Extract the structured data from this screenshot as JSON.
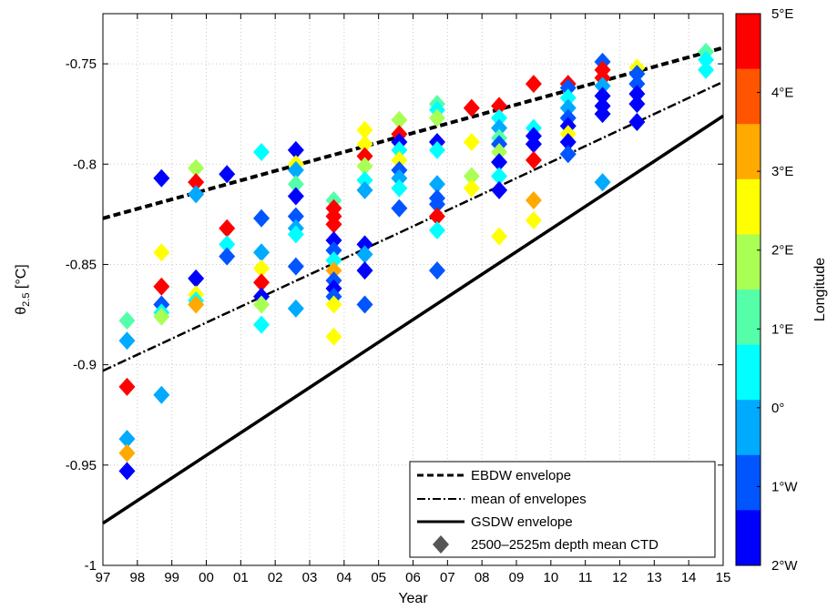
{
  "chart_data": {
    "type": "scatter",
    "xlabel": "Year",
    "ylabel_main": "θ",
    "ylabel_sub": "2.5",
    "ylabel_unit": " [°C]",
    "colorbar_label": "Longitude",
    "x_ticks": [
      "97",
      "98",
      "99",
      "00",
      "01",
      "02",
      "03",
      "04",
      "05",
      "06",
      "07",
      "08",
      "09",
      "10",
      "11",
      "12",
      "13",
      "14",
      "15"
    ],
    "y_ticks": [
      "-0.75",
      "-0.8",
      "-0.85",
      "-0.9",
      "-0.95",
      "-1"
    ],
    "y_tick_values": [
      -0.75,
      -0.8,
      -0.85,
      -0.9,
      -0.95,
      -1.0
    ],
    "xlim": [
      1997,
      2015
    ],
    "ylim": [
      -1.0,
      -0.725
    ],
    "grid": true,
    "legend_position": "bottom-right",
    "colorbar": {
      "range": [
        -2,
        5
      ],
      "tick_values": [
        5,
        4,
        3,
        2,
        1,
        0,
        -1,
        -2
      ],
      "tick_labels": [
        "5°E",
        "4°E",
        "3°E",
        "2°E",
        "1°E",
        "0°",
        "1°W",
        "2°W"
      ],
      "colors": [
        "#0000ff",
        "#0055ff",
        "#00aaff",
        "#00ffff",
        "#55ffaa",
        "#aaff55",
        "#ffff00",
        "#ffaa00",
        "#ff5500",
        "#ff0000"
      ]
    },
    "lines": [
      {
        "name": "EBDW envelope",
        "style": "dashed",
        "x": [
          1997,
          2015
        ],
        "y": [
          -0.827,
          -0.742
        ]
      },
      {
        "name": "mean of envelopes",
        "style": "dashdot",
        "x": [
          1997,
          2015
        ],
        "y": [
          -0.903,
          -0.759
        ]
      },
      {
        "name": "GSDW envelope",
        "style": "solid",
        "x": [
          1997,
          2015
        ],
        "y": [
          -0.979,
          -0.776
        ]
      }
    ],
    "points_legend_label": "2500–2525m depth mean CTD",
    "points": [
      {
        "x": 1997.7,
        "y": -0.878,
        "lon": 1.3
      },
      {
        "x": 1997.7,
        "y": -0.888,
        "lon": -0.3
      },
      {
        "x": 1997.7,
        "y": -0.911,
        "lon": 4.8
      },
      {
        "x": 1997.7,
        "y": -0.937,
        "lon": 0.0
      },
      {
        "x": 1997.7,
        "y": -0.944,
        "lon": 3.0
      },
      {
        "x": 1997.7,
        "y": -0.953,
        "lon": -1.6
      },
      {
        "x": 1998.7,
        "y": -0.807,
        "lon": -1.5
      },
      {
        "x": 1998.7,
        "y": -0.844,
        "lon": 2.2
      },
      {
        "x": 1998.7,
        "y": -0.861,
        "lon": 4.7
      },
      {
        "x": 1998.7,
        "y": -0.87,
        "lon": -0.8
      },
      {
        "x": 1998.7,
        "y": -0.874,
        "lon": 0.6
      },
      {
        "x": 1998.7,
        "y": -0.876,
        "lon": 1.5
      },
      {
        "x": 1998.7,
        "y": -0.915,
        "lon": -0.5
      },
      {
        "x": 1999.7,
        "y": -0.802,
        "lon": 2.1
      },
      {
        "x": 1999.7,
        "y": -0.809,
        "lon": 4.7
      },
      {
        "x": 1999.7,
        "y": -0.815,
        "lon": -0.4
      },
      {
        "x": 1999.7,
        "y": -0.857,
        "lon": -1.5
      },
      {
        "x": 1999.7,
        "y": -0.865,
        "lon": 2.6
      },
      {
        "x": 1999.7,
        "y": -0.868,
        "lon": 0.2
      },
      {
        "x": 1999.7,
        "y": -0.87,
        "lon": 3.1
      },
      {
        "x": 2000.6,
        "y": -0.805,
        "lon": -1.4
      },
      {
        "x": 2000.6,
        "y": -0.832,
        "lon": 4.6
      },
      {
        "x": 2000.6,
        "y": -0.84,
        "lon": 0.3
      },
      {
        "x": 2000.6,
        "y": -0.846,
        "lon": -0.6
      },
      {
        "x": 2001.6,
        "y": -0.794,
        "lon": 0.4
      },
      {
        "x": 2001.6,
        "y": -0.827,
        "lon": -0.8
      },
      {
        "x": 2001.6,
        "y": -0.844,
        "lon": -0.4
      },
      {
        "x": 2001.6,
        "y": -0.852,
        "lon": 2.2
      },
      {
        "x": 2001.6,
        "y": -0.859,
        "lon": 4.6
      },
      {
        "x": 2001.6,
        "y": -0.866,
        "lon": -1.6
      },
      {
        "x": 2001.6,
        "y": -0.87,
        "lon": 1.6
      },
      {
        "x": 2001.6,
        "y": -0.88,
        "lon": 0.2
      },
      {
        "x": 2002.6,
        "y": -0.793,
        "lon": -1.6
      },
      {
        "x": 2002.6,
        "y": -0.8,
        "lon": 2.2
      },
      {
        "x": 2002.6,
        "y": -0.803,
        "lon": -0.5
      },
      {
        "x": 2002.6,
        "y": -0.81,
        "lon": 1.4
      },
      {
        "x": 2002.6,
        "y": -0.816,
        "lon": -1.3
      },
      {
        "x": 2002.6,
        "y": -0.826,
        "lon": -1.0
      },
      {
        "x": 2002.6,
        "y": -0.832,
        "lon": -0.4
      },
      {
        "x": 2002.6,
        "y": -0.835,
        "lon": 0.8
      },
      {
        "x": 2002.6,
        "y": -0.851,
        "lon": -1.0
      },
      {
        "x": 2002.6,
        "y": -0.872,
        "lon": -0.2
      },
      {
        "x": 2003.7,
        "y": -0.818,
        "lon": 1.2
      },
      {
        "x": 2003.7,
        "y": -0.822,
        "lon": 4.7
      },
      {
        "x": 2003.7,
        "y": -0.826,
        "lon": 4.9
      },
      {
        "x": 2003.7,
        "y": -0.83,
        "lon": 4.5
      },
      {
        "x": 2003.7,
        "y": -0.838,
        "lon": -1.5
      },
      {
        "x": 2003.7,
        "y": -0.843,
        "lon": -0.6
      },
      {
        "x": 2003.7,
        "y": -0.848,
        "lon": 0.4
      },
      {
        "x": 2003.7,
        "y": -0.853,
        "lon": 3.0
      },
      {
        "x": 2003.7,
        "y": -0.858,
        "lon": -1.2
      },
      {
        "x": 2003.7,
        "y": -0.862,
        "lon": -1.7
      },
      {
        "x": 2003.7,
        "y": -0.866,
        "lon": -0.9
      },
      {
        "x": 2003.7,
        "y": -0.87,
        "lon": 2.2
      },
      {
        "x": 2003.7,
        "y": -0.886,
        "lon": 2.4
      },
      {
        "x": 2004.6,
        "y": -0.783,
        "lon": 2.8
      },
      {
        "x": 2004.6,
        "y": -0.79,
        "lon": 2.3
      },
      {
        "x": 2004.6,
        "y": -0.796,
        "lon": 4.6
      },
      {
        "x": 2004.6,
        "y": -0.801,
        "lon": 1.7
      },
      {
        "x": 2004.6,
        "y": -0.808,
        "lon": 0.8
      },
      {
        "x": 2004.6,
        "y": -0.813,
        "lon": -0.2
      },
      {
        "x": 2004.6,
        "y": -0.84,
        "lon": -1.5
      },
      {
        "x": 2004.6,
        "y": -0.845,
        "lon": -0.5
      },
      {
        "x": 2004.6,
        "y": -0.853,
        "lon": -1.6
      },
      {
        "x": 2004.6,
        "y": -0.87,
        "lon": -1.0
      },
      {
        "x": 2005.6,
        "y": -0.778,
        "lon": 1.6
      },
      {
        "x": 2005.6,
        "y": -0.785,
        "lon": 4.8
      },
      {
        "x": 2005.6,
        "y": -0.789,
        "lon": -1.3
      },
      {
        "x": 2005.6,
        "y": -0.793,
        "lon": 0.7
      },
      {
        "x": 2005.6,
        "y": -0.798,
        "lon": 2.3
      },
      {
        "x": 2005.6,
        "y": -0.803,
        "lon": -1.0
      },
      {
        "x": 2005.6,
        "y": -0.807,
        "lon": -0.3
      },
      {
        "x": 2005.6,
        "y": -0.812,
        "lon": 0.1
      },
      {
        "x": 2005.6,
        "y": -0.822,
        "lon": -0.7
      },
      {
        "x": 2006.7,
        "y": -0.77,
        "lon": 1.0
      },
      {
        "x": 2006.7,
        "y": -0.773,
        "lon": 0.2
      },
      {
        "x": 2006.7,
        "y": -0.777,
        "lon": 2.1
      },
      {
        "x": 2006.7,
        "y": -0.789,
        "lon": -1.6
      },
      {
        "x": 2006.7,
        "y": -0.793,
        "lon": 0.3
      },
      {
        "x": 2006.7,
        "y": -0.81,
        "lon": -0.2
      },
      {
        "x": 2006.7,
        "y": -0.817,
        "lon": -0.8
      },
      {
        "x": 2006.7,
        "y": -0.82,
        "lon": -1.1
      },
      {
        "x": 2006.7,
        "y": -0.826,
        "lon": 4.7
      },
      {
        "x": 2006.7,
        "y": -0.833,
        "lon": 0.4
      },
      {
        "x": 2006.7,
        "y": -0.853,
        "lon": -1.1
      },
      {
        "x": 2007.7,
        "y": -0.772,
        "lon": 4.8
      },
      {
        "x": 2007.7,
        "y": -0.789,
        "lon": 2.2
      },
      {
        "x": 2007.7,
        "y": -0.806,
        "lon": 1.6
      },
      {
        "x": 2007.7,
        "y": -0.812,
        "lon": 2.6
      },
      {
        "x": 2008.5,
        "y": -0.771,
        "lon": 4.9
      },
      {
        "x": 2008.5,
        "y": -0.777,
        "lon": 0.4
      },
      {
        "x": 2008.5,
        "y": -0.782,
        "lon": -0.5
      },
      {
        "x": 2008.5,
        "y": -0.787,
        "lon": 1.3
      },
      {
        "x": 2008.5,
        "y": -0.79,
        "lon": -1.2
      },
      {
        "x": 2008.5,
        "y": -0.794,
        "lon": 2.1
      },
      {
        "x": 2008.5,
        "y": -0.799,
        "lon": -1.5
      },
      {
        "x": 2008.5,
        "y": -0.806,
        "lon": 0.5
      },
      {
        "x": 2008.5,
        "y": -0.813,
        "lon": -1.3
      },
      {
        "x": 2008.5,
        "y": -0.836,
        "lon": 2.3
      },
      {
        "x": 2009.5,
        "y": -0.76,
        "lon": 4.8
      },
      {
        "x": 2009.5,
        "y": -0.782,
        "lon": 0.1
      },
      {
        "x": 2009.5,
        "y": -0.786,
        "lon": -1.3
      },
      {
        "x": 2009.5,
        "y": -0.79,
        "lon": -1.7
      },
      {
        "x": 2009.5,
        "y": -0.798,
        "lon": 4.7
      },
      {
        "x": 2009.5,
        "y": -0.818,
        "lon": 2.9
      },
      {
        "x": 2009.5,
        "y": -0.828,
        "lon": 2.2
      },
      {
        "x": 2010.5,
        "y": -0.76,
        "lon": 4.8
      },
      {
        "x": 2010.5,
        "y": -0.762,
        "lon": -0.8
      },
      {
        "x": 2010.5,
        "y": -0.767,
        "lon": 0.6
      },
      {
        "x": 2010.5,
        "y": -0.772,
        "lon": -0.2
      },
      {
        "x": 2010.5,
        "y": -0.777,
        "lon": -1.2
      },
      {
        "x": 2010.5,
        "y": -0.781,
        "lon": -1.6
      },
      {
        "x": 2010.5,
        "y": -0.785,
        "lon": 2.2
      },
      {
        "x": 2010.5,
        "y": -0.789,
        "lon": -1.4
      },
      {
        "x": 2010.5,
        "y": -0.795,
        "lon": -0.7
      },
      {
        "x": 2011.5,
        "y": -0.749,
        "lon": -0.9
      },
      {
        "x": 2011.5,
        "y": -0.753,
        "lon": 4.6
      },
      {
        "x": 2011.5,
        "y": -0.757,
        "lon": 4.8
      },
      {
        "x": 2011.5,
        "y": -0.761,
        "lon": -0.3
      },
      {
        "x": 2011.5,
        "y": -0.766,
        "lon": -1.3
      },
      {
        "x": 2011.5,
        "y": -0.771,
        "lon": -1.5
      },
      {
        "x": 2011.5,
        "y": -0.775,
        "lon": -1.7
      },
      {
        "x": 2011.5,
        "y": -0.809,
        "lon": -0.4
      },
      {
        "x": 2012.5,
        "y": -0.752,
        "lon": 2.2
      },
      {
        "x": 2012.5,
        "y": -0.755,
        "lon": -0.8
      },
      {
        "x": 2012.5,
        "y": -0.76,
        "lon": -1.2
      },
      {
        "x": 2012.5,
        "y": -0.765,
        "lon": -1.6
      },
      {
        "x": 2012.5,
        "y": -0.77,
        "lon": -1.4
      },
      {
        "x": 2012.5,
        "y": -0.779,
        "lon": -1.7
      },
      {
        "x": 2014.5,
        "y": -0.744,
        "lon": 1.4
      },
      {
        "x": 2014.5,
        "y": -0.748,
        "lon": 0.6
      },
      {
        "x": 2014.5,
        "y": -0.753,
        "lon": 0.2
      }
    ]
  }
}
